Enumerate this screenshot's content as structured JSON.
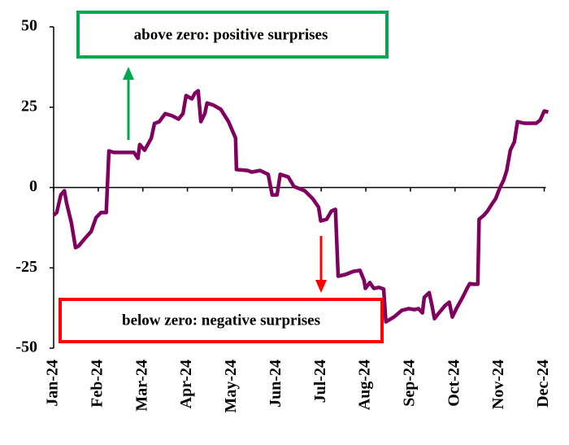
{
  "chart_data": {
    "type": "line",
    "annotations": [
      "above zero: positive surprises",
      "below zero: negative surprises"
    ],
    "x": [
      0,
      0.07,
      0.16,
      0.24,
      0.29,
      0.4,
      0.49,
      0.56,
      0.71,
      0.84,
      0.95,
      1.06,
      1.18,
      1.24,
      1.35,
      1.8,
      1.89,
      1.93,
      2.04,
      2.19,
      2.26,
      2.37,
      2.5,
      2.66,
      2.8,
      2.9,
      2.97,
      3.1,
      3.17,
      3.24,
      3.3,
      3.39,
      3.44,
      3.59,
      3.75,
      3.92,
      4.08,
      4.1,
      4.35,
      4.44,
      4.63,
      4.81,
      4.9,
      5.01,
      5.08,
      5.26,
      5.39,
      5.63,
      5.81,
      5.94,
      5.99,
      6.12,
      6.23,
      6.32,
      6.38,
      6.54,
      6.72,
      6.87,
      6.96,
      6.99,
      7.09,
      7.18,
      7.29,
      7.4,
      7.45,
      7.63,
      7.81,
      7.96,
      8.09,
      8.18,
      8.27,
      8.31,
      8.42,
      8.49,
      8.54,
      8.63,
      8.78,
      8.87,
      8.94,
      9.03,
      9.13,
      9.18,
      9.27,
      9.33,
      9.42,
      9.51,
      9.54,
      9.65,
      9.73,
      9.82,
      9.91,
      10,
      10.09,
      10.16,
      10.24,
      10.33,
      10.4,
      10.55,
      10.66,
      10.82,
      10.91,
      11,
      11.09
    ],
    "series": [
      {
        "color": "#800060",
        "values": [
          -8.6,
          -7.8,
          -2.3,
          -1,
          -4.8,
          -11.1,
          -18.7,
          -18.2,
          -15.7,
          -13.7,
          -9.4,
          -7.8,
          -7.8,
          11.4,
          10.9,
          10.9,
          9.1,
          13.4,
          11.6,
          15.4,
          19.9,
          20.5,
          23,
          22.3,
          21.3,
          23,
          28.6,
          27.6,
          29.4,
          30.1,
          20.5,
          23,
          26.3,
          25.6,
          24.3,
          20.5,
          15.4,
          5.6,
          5.3,
          4.8,
          5.3,
          4.1,
          -2.3,
          -2.3,
          4.1,
          3.3,
          0.3,
          -1,
          -3.5,
          -6.1,
          -10.4,
          -9.9,
          -7.3,
          -6.8,
          -27.6,
          -27.1,
          -26.1,
          -25.8,
          -28.9,
          -31.4,
          -29.6,
          -31.4,
          -31.1,
          -31.6,
          -41.8,
          -40.3,
          -38.2,
          -37.7,
          -38,
          -37.7,
          -39,
          -34.2,
          -32.7,
          -37.2,
          -40.8,
          -39.2,
          -36.7,
          -35.7,
          -40.3,
          -37.7,
          -35.2,
          -33.9,
          -31.4,
          -29.9,
          -30.1,
          -30.1,
          -9.9,
          -8.6,
          -7.3,
          -5.3,
          -3.5,
          -0.3,
          2.3,
          5.3,
          11.6,
          14.2,
          20.5,
          20,
          20,
          20,
          21,
          23.8,
          23.5
        ]
      }
    ],
    "xlim": [
      0,
      11.1
    ],
    "xticks": [
      {
        "value": 0,
        "label": "Jan-24"
      },
      {
        "value": 1,
        "label": "Feb-24"
      },
      {
        "value": 2,
        "label": "Mar-24"
      },
      {
        "value": 3,
        "label": "Apr-24"
      },
      {
        "value": 4,
        "label": "May-24"
      },
      {
        "value": 5,
        "label": "Jun-24"
      },
      {
        "value": 6,
        "label": "Jul-24"
      },
      {
        "value": 7,
        "label": "Aug-24"
      },
      {
        "value": 8,
        "label": "Sep-24"
      },
      {
        "value": 9,
        "label": "Oct-24"
      },
      {
        "value": 10,
        "label": "Nov-24"
      },
      {
        "value": 11,
        "label": "Dec-24"
      }
    ],
    "ylim": [
      -50,
      50
    ],
    "yticks": [
      -50,
      -25,
      0,
      25,
      50
    ]
  }
}
